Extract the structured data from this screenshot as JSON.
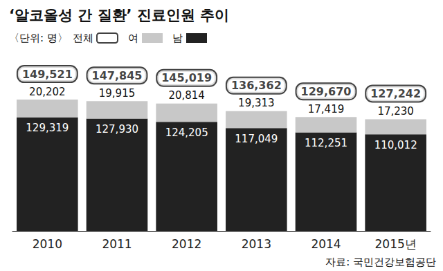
{
  "chart_data": {
    "type": "bar",
    "title": "‘알코올성 간 질환’ 진료인원 추이",
    "subtitle": "〈단위: 명〉",
    "source": "자료: 국민건강보험공단",
    "categories": [
      "2010",
      "2011",
      "2012",
      "2013",
      "2014",
      "2015년"
    ],
    "series": [
      {
        "name": "남",
        "color": "#222222",
        "values": [
          129319,
          127930,
          124205,
          117049,
          112251,
          110012
        ],
        "value_labels": [
          "129,319",
          "127,930",
          "124,205",
          "117,049",
          "112,251",
          "110,012"
        ]
      },
      {
        "name": "여",
        "color": "#c8c8c8",
        "values": [
          20202,
          19915,
          20814,
          19313,
          17419,
          17230
        ],
        "value_labels": [
          "20,202",
          "19,915",
          "20,814",
          "19,313",
          "17,419",
          "17,230"
        ]
      }
    ],
    "totals": {
      "name": "전체",
      "color": "#ffffff",
      "values": [
        149521,
        147845,
        145019,
        136362,
        129670,
        127242
      ],
      "value_labels": [
        "149,521",
        "147,845",
        "145,019",
        "136,362",
        "129,670",
        "127,242"
      ]
    },
    "stacked": true,
    "data_labels": true,
    "legend": "top-left",
    "ylim": [
      0,
      200000
    ],
    "tick_labels": "x",
    "grid": false
  }
}
